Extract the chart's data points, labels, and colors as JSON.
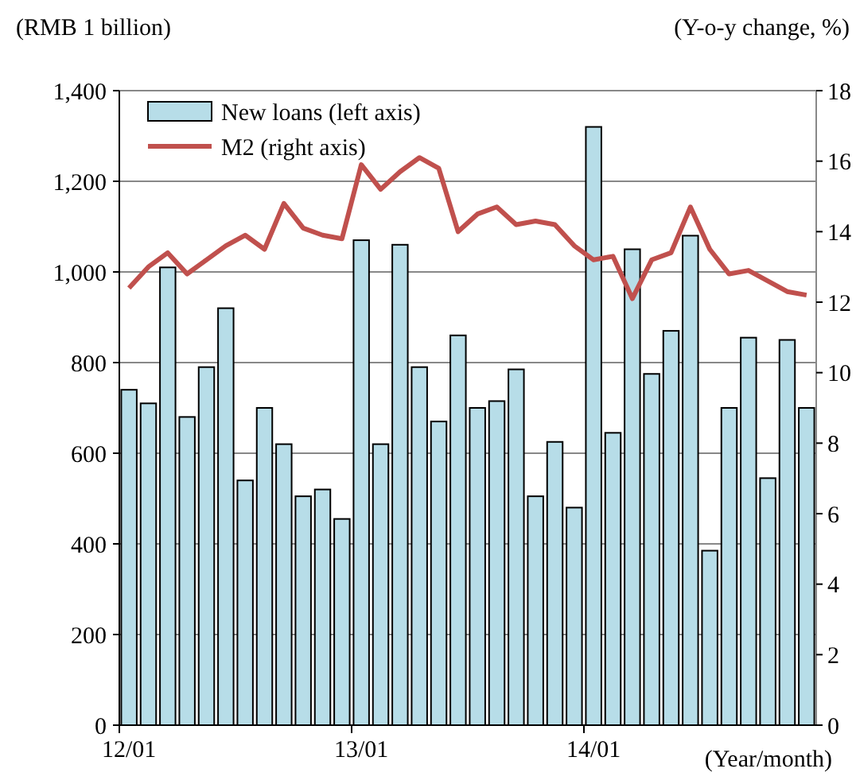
{
  "chart_data": {
    "type": "bar",
    "xlabel": "(Year/month)",
    "ylabel": "(RMB 1 billion)",
    "y2label": "(Y-o-y change, %)",
    "categories": [
      "12/01",
      null,
      null,
      null,
      null,
      null,
      null,
      null,
      null,
      null,
      null,
      null,
      "13/01",
      null,
      null,
      null,
      null,
      null,
      null,
      null,
      null,
      null,
      null,
      null,
      "14/01",
      null,
      null,
      null,
      null,
      null,
      null,
      null,
      null,
      null,
      null,
      null
    ],
    "series": [
      {
        "name": "New loans (left axis)",
        "color": "#b7dde8",
        "values": [
          740,
          710,
          1010,
          680,
          790,
          920,
          540,
          700,
          620,
          505,
          520,
          455,
          1070,
          620,
          1060,
          790,
          670,
          860,
          700,
          715,
          785,
          505,
          625,
          480,
          1320,
          645,
          1050,
          775,
          870,
          1080,
          385,
          700,
          855,
          545,
          850,
          700
        ]
      },
      {
        "name": "M2 (right axis)",
        "type": "line",
        "axis": "y2",
        "color": "#c0504d",
        "values": [
          12.4,
          13.0,
          13.4,
          12.8,
          13.2,
          13.6,
          13.9,
          13.5,
          14.8,
          14.1,
          13.9,
          13.8,
          15.9,
          15.2,
          15.7,
          16.1,
          15.8,
          14.0,
          14.5,
          14.7,
          14.2,
          14.3,
          14.2,
          13.6,
          13.2,
          13.3,
          12.1,
          13.2,
          13.4,
          14.7,
          13.5,
          12.8,
          12.9,
          12.6,
          12.3,
          12.2
        ]
      }
    ],
    "ylim": [
      0,
      1400
    ],
    "yticks": [
      0,
      {
        "value": 200,
        "label": "200"
      },
      {
        "value": 400,
        "label": "400"
      },
      {
        "value": 600,
        "label": "600"
      },
      {
        "value": 800,
        "label": "800"
      },
      {
        "value": 1000,
        "label": "1,000"
      },
      {
        "value": 1200,
        "label": "1,200"
      },
      {
        "value": 1400,
        "label": "1,400"
      }
    ],
    "y2lim": [
      0,
      18
    ],
    "y2ticks": [
      0,
      2,
      4,
      6,
      8,
      10,
      12,
      14,
      16,
      18
    ],
    "grid": "y",
    "legend": "top left",
    "marker": "none",
    "line_style": "solid"
  }
}
